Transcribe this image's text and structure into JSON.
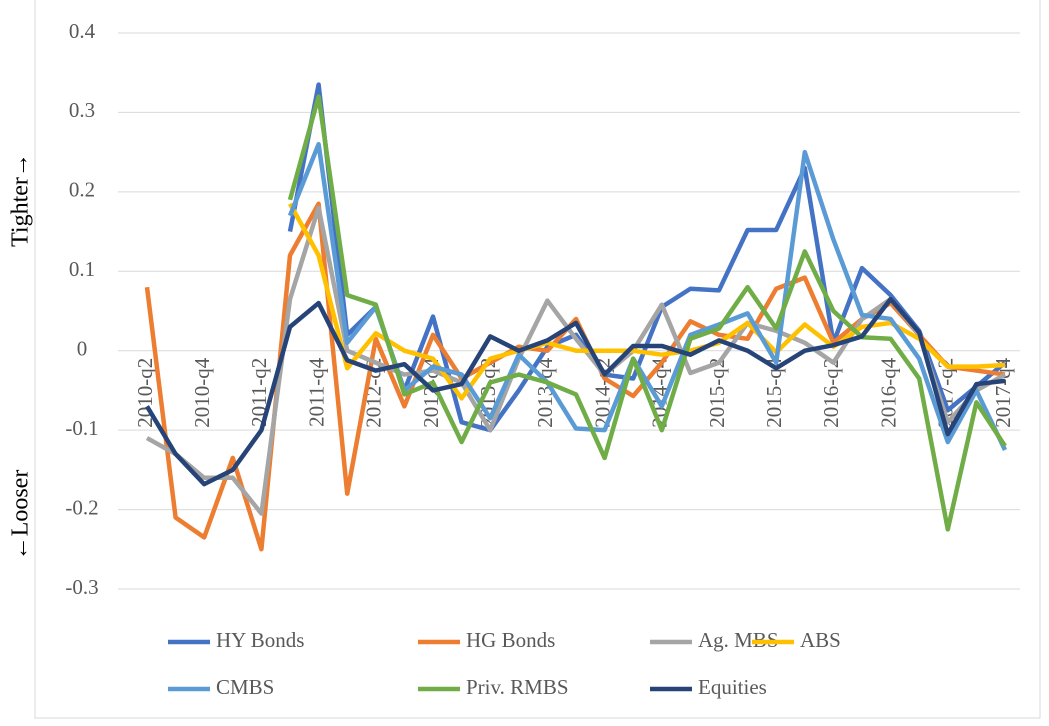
{
  "chart_data": {
    "type": "line",
    "y_label_top": "Tighter→",
    "y_label_bottom": "←Looser",
    "categories": [
      "2010-q2",
      null,
      "2010-q4",
      null,
      "2011-q2",
      null,
      "2011-q4",
      null,
      "2012-q2",
      null,
      "2012-q4",
      null,
      "2013-q2",
      null,
      "2013-q4",
      null,
      "2014-q2",
      null,
      "2014-q4",
      null,
      "2015-q2",
      null,
      "2015-q4",
      null,
      "2016-q2",
      null,
      "2016-q4",
      null,
      "2017-q2",
      null,
      "2017-q4"
    ],
    "ylim": [
      -0.3,
      0.4
    ],
    "yticks": [
      -0.3,
      -0.2,
      -0.1,
      0,
      0.1,
      0.2,
      0.3,
      0.4
    ],
    "grid": true,
    "series": [
      {
        "name": "HY Bonds",
        "color": "#4472c4",
        "values": [
          null,
          null,
          null,
          null,
          null,
          0.15,
          0.335,
          0.02,
          0.055,
          -0.05,
          0.043,
          -0.09,
          -0.1,
          -0.05,
          0.005,
          0.02,
          -0.03,
          -0.035,
          0.055,
          0.078,
          0.076,
          0.152,
          0.152,
          0.23,
          0.01,
          0.104,
          0.07,
          0.025,
          -0.075,
          -0.045,
          -0.015
        ]
      },
      {
        "name": "HG Bonds",
        "color": "#ed7d31",
        "values": [
          0.08,
          -0.21,
          -0.235,
          -0.135,
          -0.25,
          0.12,
          0.185,
          -0.18,
          0.015,
          -0.07,
          0.02,
          -0.035,
          -0.015,
          0.005,
          0.0,
          0.04,
          -0.035,
          -0.057,
          -0.015,
          0.037,
          0.02,
          0.015,
          0.078,
          0.092,
          0.01,
          0.04,
          0.06,
          0.02,
          -0.02,
          -0.025,
          -0.03
        ]
      },
      {
        "name": "Ag. MBS",
        "color": "#a5a5a5",
        "values": [
          -0.11,
          -0.13,
          -0.16,
          -0.16,
          -0.205,
          0.065,
          0.18,
          0.0,
          -0.015,
          -0.03,
          -0.025,
          -0.04,
          -0.1,
          -0.01,
          0.063,
          0.015,
          -0.03,
          0.0,
          0.058,
          -0.028,
          -0.015,
          0.035,
          0.025,
          0.01,
          -0.015,
          0.04,
          0.065,
          0.02,
          -0.09,
          -0.05,
          -0.03
        ]
      },
      {
        "name": "ABS",
        "color": "#ffc000",
        "values": [
          null,
          null,
          null,
          null,
          null,
          0.185,
          0.12,
          -0.022,
          0.022,
          0.0,
          -0.01,
          -0.06,
          -0.01,
          0.0,
          0.01,
          0.0,
          0.0,
          0.0,
          -0.005,
          0.0,
          0.01,
          0.035,
          -0.002,
          0.033,
          0.005,
          0.03,
          0.035,
          0.015,
          -0.02,
          -0.02,
          -0.018
        ]
      },
      {
        "name": "CMBS",
        "color": "#5b9bd5",
        "values": [
          null,
          null,
          null,
          null,
          null,
          0.17,
          0.26,
          0.01,
          0.055,
          -0.05,
          -0.02,
          -0.03,
          -0.085,
          -0.005,
          -0.04,
          -0.098,
          -0.1,
          -0.01,
          -0.07,
          0.02,
          0.033,
          0.047,
          -0.015,
          0.25,
          0.14,
          0.045,
          0.04,
          -0.01,
          -0.115,
          -0.05,
          -0.125
        ]
      },
      {
        "name": "Priv. RMBS",
        "color": "#70ad47",
        "values": [
          null,
          null,
          null,
          null,
          null,
          0.19,
          0.32,
          0.07,
          0.058,
          -0.055,
          -0.04,
          -0.115,
          -0.04,
          -0.03,
          -0.04,
          -0.055,
          -0.135,
          -0.01,
          -0.1,
          0.015,
          0.028,
          0.08,
          0.028,
          0.125,
          0.05,
          0.017,
          0.015,
          -0.035,
          -0.225,
          -0.065,
          -0.12
        ]
      },
      {
        "name": "Equities",
        "color": "#264478",
        "values": [
          -0.07,
          -0.13,
          -0.168,
          -0.15,
          -0.1,
          0.03,
          0.06,
          -0.012,
          -0.025,
          -0.017,
          -0.05,
          -0.042,
          0.018,
          0.0,
          0.013,
          0.035,
          -0.03,
          0.006,
          0.006,
          -0.005,
          0.013,
          0.0,
          -0.022,
          0.0,
          0.007,
          0.018,
          0.065,
          0.023,
          -0.105,
          -0.042,
          -0.038
        ]
      }
    ]
  }
}
